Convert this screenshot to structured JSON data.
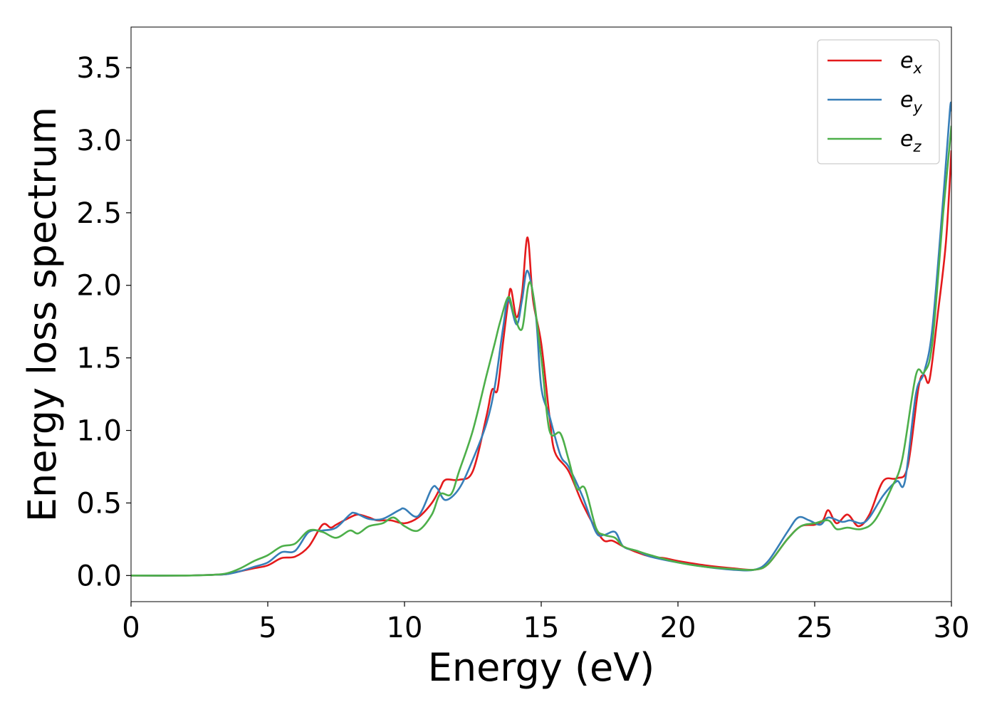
{
  "chart_data": {
    "type": "line",
    "title": "",
    "xlabel": "Energy (eV)",
    "ylabel": "Energy loss spectrum",
    "xlim": [
      0,
      30
    ],
    "ylim": [
      -0.18,
      3.78
    ],
    "xticks": [
      0,
      5,
      10,
      15,
      20,
      25,
      30
    ],
    "xtick_labels": [
      "0",
      "5",
      "10",
      "15",
      "20",
      "25",
      "30"
    ],
    "yticks": [
      0.0,
      0.5,
      1.0,
      1.5,
      2.0,
      2.5,
      3.0,
      3.5
    ],
    "ytick_labels": [
      "0.0",
      "0.5",
      "1.0",
      "1.5",
      "2.0",
      "2.5",
      "3.0",
      "3.5"
    ],
    "grid": false,
    "legend_position": "top-right",
    "series": [
      {
        "name": "e",
        "subscript": "x",
        "color": "#e41a1c",
        "points": [
          [
            0,
            0
          ],
          [
            2,
            0
          ],
          [
            3,
            0.005
          ],
          [
            3.5,
            0.01
          ],
          [
            4,
            0.03
          ],
          [
            4.5,
            0.05
          ],
          [
            5,
            0.07
          ],
          [
            5.5,
            0.12
          ],
          [
            6,
            0.13
          ],
          [
            6.5,
            0.2
          ],
          [
            7,
            0.35
          ],
          [
            7.3,
            0.33
          ],
          [
            7.5,
            0.35
          ],
          [
            8,
            0.4
          ],
          [
            8.3,
            0.42
          ],
          [
            8.7,
            0.4
          ],
          [
            9,
            0.38
          ],
          [
            9.5,
            0.38
          ],
          [
            10,
            0.36
          ],
          [
            10.5,
            0.4
          ],
          [
            11,
            0.5
          ],
          [
            11.3,
            0.6
          ],
          [
            11.5,
            0.66
          ],
          [
            12,
            0.66
          ],
          [
            12.5,
            0.72
          ],
          [
            13,
            1.1
          ],
          [
            13.2,
            1.28
          ],
          [
            13.4,
            1.28
          ],
          [
            13.6,
            1.6
          ],
          [
            13.8,
            1.9
          ],
          [
            13.9,
            1.97
          ],
          [
            14.1,
            1.78
          ],
          [
            14.3,
            1.95
          ],
          [
            14.5,
            2.33
          ],
          [
            14.7,
            1.9
          ],
          [
            15,
            1.6
          ],
          [
            15.3,
            1.1
          ],
          [
            15.5,
            0.85
          ],
          [
            16,
            0.72
          ],
          [
            16.5,
            0.5
          ],
          [
            17,
            0.32
          ],
          [
            17.3,
            0.24
          ],
          [
            17.6,
            0.24
          ],
          [
            18,
            0.2
          ],
          [
            18.5,
            0.16
          ],
          [
            19,
            0.13
          ],
          [
            19.5,
            0.12
          ],
          [
            20,
            0.1
          ],
          [
            21,
            0.07
          ],
          [
            22,
            0.05
          ],
          [
            22.8,
            0.04
          ],
          [
            23.3,
            0.08
          ],
          [
            24,
            0.25
          ],
          [
            24.5,
            0.34
          ],
          [
            25,
            0.35
          ],
          [
            25.3,
            0.38
          ],
          [
            25.5,
            0.45
          ],
          [
            25.8,
            0.36
          ],
          [
            26.2,
            0.42
          ],
          [
            26.6,
            0.34
          ],
          [
            27,
            0.42
          ],
          [
            27.5,
            0.65
          ],
          [
            28,
            0.67
          ],
          [
            28.4,
            0.75
          ],
          [
            28.8,
            1.3
          ],
          [
            29,
            1.38
          ],
          [
            29.2,
            1.35
          ],
          [
            29.5,
            1.8
          ],
          [
            29.8,
            2.3
          ],
          [
            30,
            2.93
          ]
        ]
      },
      {
        "name": "e",
        "subscript": "y",
        "color": "#377eb8",
        "points": [
          [
            0,
            0
          ],
          [
            2,
            0
          ],
          [
            3,
            0.005
          ],
          [
            3.5,
            0.01
          ],
          [
            4,
            0.03
          ],
          [
            4.5,
            0.06
          ],
          [
            5,
            0.09
          ],
          [
            5.5,
            0.16
          ],
          [
            6,
            0.17
          ],
          [
            6.5,
            0.3
          ],
          [
            7,
            0.31
          ],
          [
            7.5,
            0.33
          ],
          [
            8,
            0.42
          ],
          [
            8.2,
            0.43
          ],
          [
            8.7,
            0.39
          ],
          [
            9.2,
            0.39
          ],
          [
            9.8,
            0.45
          ],
          [
            10,
            0.46
          ],
          [
            10.5,
            0.41
          ],
          [
            11,
            0.6
          ],
          [
            11.2,
            0.6
          ],
          [
            11.5,
            0.52
          ],
          [
            12,
            0.6
          ],
          [
            12.5,
            0.8
          ],
          [
            13,
            1.05
          ],
          [
            13.3,
            1.3
          ],
          [
            13.6,
            1.7
          ],
          [
            13.8,
            1.9
          ],
          [
            14.1,
            1.73
          ],
          [
            14.3,
            1.9
          ],
          [
            14.5,
            2.1
          ],
          [
            14.8,
            1.8
          ],
          [
            15,
            1.3
          ],
          [
            15.3,
            1.1
          ],
          [
            15.7,
            0.83
          ],
          [
            16,
            0.75
          ],
          [
            16.5,
            0.55
          ],
          [
            17,
            0.3
          ],
          [
            17.3,
            0.28
          ],
          [
            17.7,
            0.3
          ],
          [
            18,
            0.2
          ],
          [
            18.5,
            0.17
          ],
          [
            19,
            0.13
          ],
          [
            20,
            0.09
          ],
          [
            21,
            0.06
          ],
          [
            22,
            0.04
          ],
          [
            22.8,
            0.04
          ],
          [
            23.3,
            0.1
          ],
          [
            24,
            0.3
          ],
          [
            24.4,
            0.4
          ],
          [
            24.8,
            0.38
          ],
          [
            25.2,
            0.35
          ],
          [
            25.5,
            0.4
          ],
          [
            26,
            0.37
          ],
          [
            26.3,
            0.38
          ],
          [
            26.7,
            0.36
          ],
          [
            27,
            0.4
          ],
          [
            27.5,
            0.55
          ],
          [
            28,
            0.65
          ],
          [
            28.3,
            0.65
          ],
          [
            28.7,
            1.25
          ],
          [
            29,
            1.4
          ],
          [
            29.3,
            1.7
          ],
          [
            29.7,
            2.6
          ],
          [
            29.95,
            3.22
          ],
          [
            30,
            3.2
          ]
        ]
      },
      {
        "name": "e",
        "subscript": "z",
        "color": "#4daf4a",
        "points": [
          [
            0,
            0
          ],
          [
            2,
            0
          ],
          [
            3,
            0.005
          ],
          [
            3.5,
            0.015
          ],
          [
            4,
            0.05
          ],
          [
            4.5,
            0.1
          ],
          [
            5,
            0.14
          ],
          [
            5.5,
            0.2
          ],
          [
            6,
            0.22
          ],
          [
            6.5,
            0.31
          ],
          [
            7,
            0.3
          ],
          [
            7.5,
            0.26
          ],
          [
            8,
            0.31
          ],
          [
            8.3,
            0.29
          ],
          [
            8.7,
            0.34
          ],
          [
            9.2,
            0.36
          ],
          [
            9.6,
            0.4
          ],
          [
            10,
            0.34
          ],
          [
            10.5,
            0.31
          ],
          [
            11,
            0.42
          ],
          [
            11.3,
            0.56
          ],
          [
            11.7,
            0.56
          ],
          [
            12,
            0.72
          ],
          [
            12.5,
            1.0
          ],
          [
            13,
            1.38
          ],
          [
            13.3,
            1.6
          ],
          [
            13.5,
            1.75
          ],
          [
            13.8,
            1.92
          ],
          [
            14,
            1.8
          ],
          [
            14.3,
            1.7
          ],
          [
            14.6,
            2.02
          ],
          [
            15,
            1.5
          ],
          [
            15.3,
            1.0
          ],
          [
            15.7,
            0.98
          ],
          [
            16,
            0.8
          ],
          [
            16.3,
            0.6
          ],
          [
            16.6,
            0.6
          ],
          [
            17,
            0.33
          ],
          [
            17.3,
            0.28
          ],
          [
            17.7,
            0.26
          ],
          [
            18,
            0.2
          ],
          [
            18.5,
            0.17
          ],
          [
            19,
            0.14
          ],
          [
            20,
            0.09
          ],
          [
            21,
            0.06
          ],
          [
            22,
            0.045
          ],
          [
            22.8,
            0.04
          ],
          [
            23.3,
            0.08
          ],
          [
            24,
            0.25
          ],
          [
            24.5,
            0.34
          ],
          [
            25,
            0.36
          ],
          [
            25.5,
            0.38
          ],
          [
            25.8,
            0.32
          ],
          [
            26.2,
            0.33
          ],
          [
            26.7,
            0.32
          ],
          [
            27.2,
            0.38
          ],
          [
            27.8,
            0.6
          ],
          [
            28.2,
            0.8
          ],
          [
            28.7,
            1.38
          ],
          [
            29,
            1.4
          ],
          [
            29.3,
            1.6
          ],
          [
            29.7,
            2.5
          ],
          [
            30,
            3.1
          ]
        ]
      }
    ]
  }
}
